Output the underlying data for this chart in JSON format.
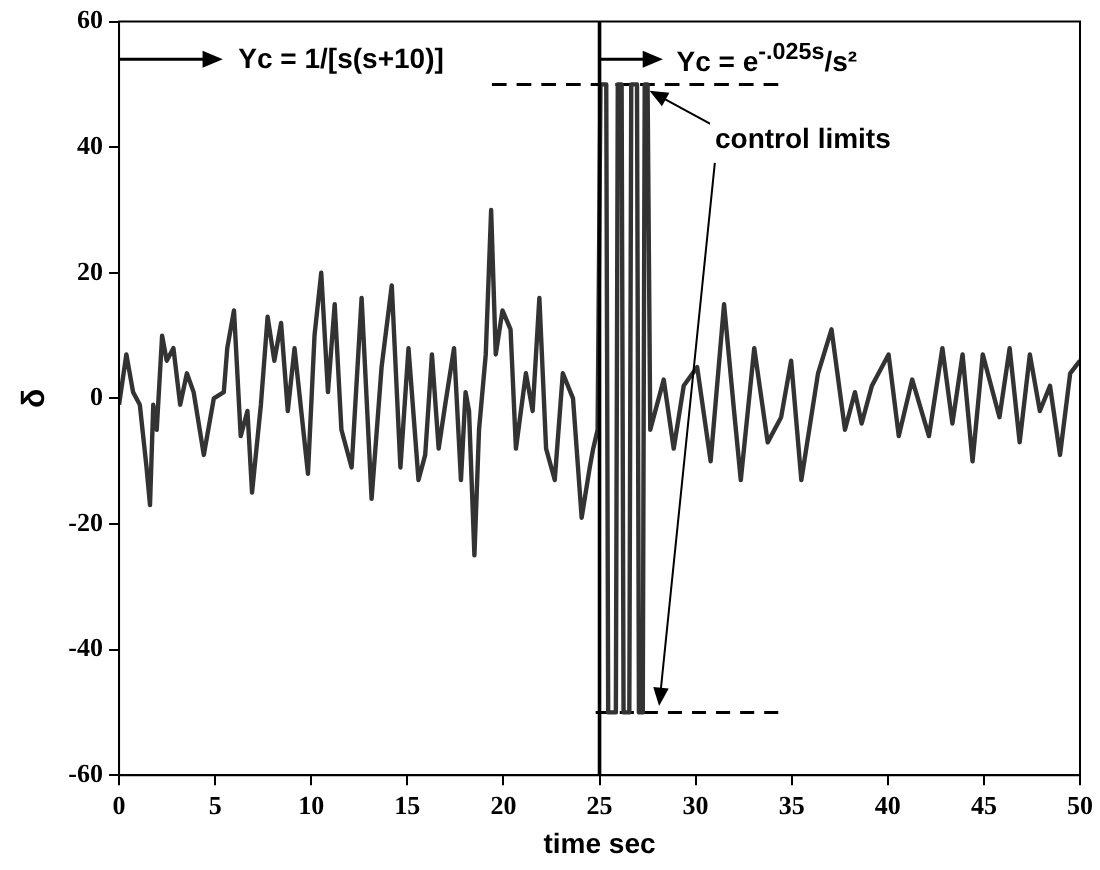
{
  "chart_data": {
    "type": "line",
    "xlabel": "time sec",
    "ylabel": "δ",
    "xlim": [
      0,
      50
    ],
    "xticks": [
      0,
      5,
      10,
      15,
      20,
      25,
      30,
      35,
      40,
      45,
      50
    ],
    "ylim": [
      -60,
      60
    ],
    "yticks": [
      -60,
      -40,
      -20,
      0,
      20,
      40,
      60
    ],
    "grid": false,
    "legend": false,
    "marker": "none",
    "series": [
      {
        "color": "#333333",
        "line_style": "solid",
        "x": [
          0,
          0.38,
          0.73,
          1.08,
          1.43,
          1.61,
          1.78,
          1.96,
          2.24,
          2.48,
          2.83,
          3.18,
          3.53,
          3.88,
          4.41,
          4.93,
          5.45,
          5.63,
          5.98,
          6.33,
          6.68,
          6.92,
          7.38,
          7.73,
          8.08,
          8.43,
          8.78,
          9.13,
          9.48,
          9.83,
          10.17,
          10.52,
          10.87,
          11.22,
          11.57,
          12.1,
          12.62,
          13.14,
          13.66,
          14.19,
          14.64,
          15.06,
          15.58,
          15.93,
          16.28,
          16.63,
          16.97,
          17.43,
          17.79,
          18.03,
          18.21,
          18.49,
          18.73,
          19.08,
          19.36,
          19.6,
          19.95,
          20.37,
          20.65,
          21.17,
          21.52,
          21.87,
          22.22,
          22.67,
          23.09,
          23.62,
          24.07,
          24.49,
          24.67,
          24.9,
          25.05,
          25.35,
          25.45,
          25.85,
          25.95,
          26.15,
          26.25,
          26.55,
          26.65,
          26.95,
          27.05,
          27.25,
          27.35,
          27.5,
          27.64,
          28.34,
          28.86,
          29.38,
          30.08,
          30.78,
          31.48,
          32.0,
          32.35,
          33.05,
          33.75,
          34.45,
          34.97,
          35.5,
          36.37,
          37.07,
          37.77,
          38.29,
          38.64,
          39.17,
          39.52,
          40.04,
          40.57,
          41.27,
          42.14,
          42.84,
          43.36,
          43.89,
          44.41,
          44.94,
          45.81,
          46.34,
          46.86,
          47.39,
          47.91,
          48.44,
          48.96,
          49.49,
          50
        ],
        "values": [
          -1,
          7,
          1,
          -1,
          -11,
          -17,
          -1,
          -5,
          10,
          6,
          8,
          -1,
          4,
          1,
          -9,
          0,
          1,
          8,
          14,
          -6,
          -2,
          -15,
          -1,
          13,
          6,
          12,
          -2,
          8,
          -2,
          -12,
          10,
          20,
          1,
          15,
          -5,
          -11,
          16,
          -16,
          5,
          18,
          -11,
          8,
          -13,
          -9,
          7,
          -8,
          -1,
          8,
          -13,
          1,
          -2,
          -25,
          -5,
          7,
          30,
          7,
          14,
          11,
          -8,
          4,
          -2,
          16,
          -8,
          -13,
          4,
          0,
          -19,
          -11,
          -8,
          -5,
          50,
          50,
          -50,
          -50,
          50,
          50,
          -50,
          -50,
          50,
          50,
          -50,
          -50,
          50,
          50,
          -5,
          3,
          -8,
          2,
          5,
          -10,
          15,
          -2,
          -13,
          8,
          -7,
          -3,
          6,
          -13,
          4,
          11,
          -5,
          1,
          -4,
          2,
          4,
          7,
          -6,
          3,
          -6,
          8,
          -4,
          7,
          -10,
          7,
          -3,
          8,
          -7,
          7,
          -2,
          2,
          -9,
          4,
          6
        ]
      },
      {
        "color": "#000000",
        "line_style": "dashed",
        "x": [
          19.4,
          34.3
        ],
        "values": [
          50,
          50
        ]
      },
      {
        "color": "#000000",
        "line_style": "dashed",
        "x": [
          24.8,
          34.3
        ],
        "values": [
          -50,
          -50
        ]
      }
    ],
    "ref_lines": [
      {
        "axis": "x",
        "value": 25,
        "color": "#000000"
      }
    ],
    "annotations": [
      "Yc = 1/[s(s+10)]",
      "Yc = e$^{-.025s}$/s²",
      "control limits"
    ]
  }
}
